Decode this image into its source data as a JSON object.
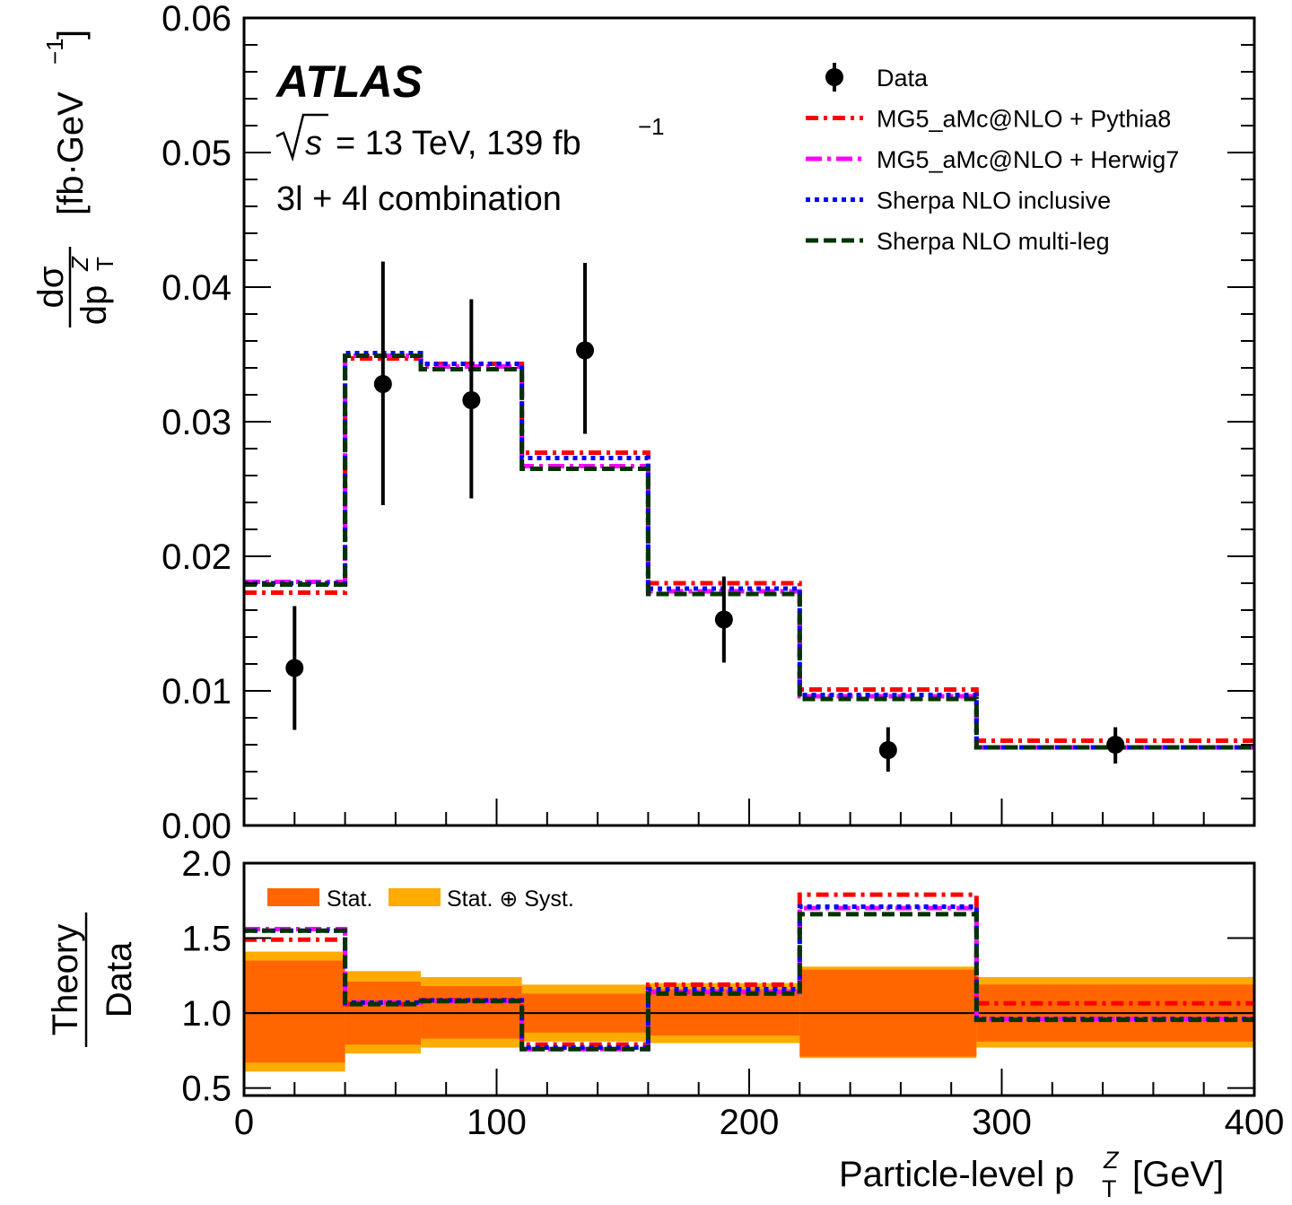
{
  "chart_data": [
    {
      "type": "line",
      "panel": "main",
      "title": "",
      "experiment_label": "ATLAS",
      "info_lines": [
        "√s = 13 TeV, 139 fb⁻¹",
        "3l + 4l combination"
      ],
      "energy_label": "= 13 TeV, 139 fb",
      "lumi_exp": "−1",
      "sqrt_s": "s",
      "channel_label": "3l + 4l combination",
      "ylabel_num": "dσ",
      "ylabel_den": "dp",
      "ylabel_den_sup": "Z",
      "ylabel_den_sub": "T",
      "ylabel_unit": "[fb·GeV",
      "ylabel_unit_exp": "−1",
      "ylabel_unit_close": "]",
      "ylim": [
        0.0,
        0.06
      ],
      "yticks": [
        0.0,
        0.01,
        0.02,
        0.03,
        0.04,
        0.05,
        0.06
      ],
      "ytick_labels": [
        "0.00",
        "0.01",
        "0.02",
        "0.03",
        "0.04",
        "0.05",
        "0.06"
      ],
      "xlim": [
        0,
        400
      ],
      "bin_edges": [
        0,
        40,
        70,
        110,
        160,
        220,
        290,
        400
      ],
      "data": {
        "name": "Data",
        "x": [
          20,
          55,
          90,
          135,
          190,
          255,
          345
        ],
        "y": [
          0.0117,
          0.0328,
          0.0316,
          0.0353,
          0.0153,
          0.0056,
          0.006
        ],
        "err_up": [
          0.0163,
          0.0419,
          0.0391,
          0.0418,
          0.0185,
          0.0073,
          0.0073
        ],
        "err_down": [
          0.0071,
          0.0238,
          0.0243,
          0.0291,
          0.0121,
          0.004,
          0.0046
        ]
      },
      "series": [
        {
          "name": "MG5_aMc@NLO + Pythia8",
          "color": "#ff0000",
          "style": "dash-dot",
          "values": [
            0.0173,
            0.0347,
            0.0343,
            0.0277,
            0.018,
            0.0101,
            0.0063
          ]
        },
        {
          "name": "MG5_aMc@NLO + Herwig7",
          "color": "#ff00ff",
          "style": "long-dash-dot",
          "values": [
            0.0181,
            0.0349,
            0.0341,
            0.0267,
            0.0174,
            0.0096,
            0.0058
          ]
        },
        {
          "name": "Sherpa NLO inclusive",
          "color": "#0000ff",
          "style": "dotted",
          "values": [
            0.018,
            0.0351,
            0.0343,
            0.0273,
            0.0176,
            0.0097,
            0.0058
          ]
        },
        {
          "name": "Sherpa NLO multi-leg",
          "color": "#003300",
          "style": "dashed",
          "values": [
            0.0179,
            0.0349,
            0.0339,
            0.0265,
            0.0172,
            0.0094,
            0.0058
          ]
        }
      ],
      "legend": {
        "placement": "top-right",
        "entries": [
          "Data",
          "MG5_aMc@NLO + Pythia8",
          "MG5_aMc@NLO + Herwig7",
          "Sherpa NLO inclusive",
          "Sherpa NLO multi-leg"
        ]
      }
    },
    {
      "type": "line",
      "panel": "ratio",
      "ylabel_num": "Theory",
      "ylabel_den": "Data",
      "xlabel": "Particle-level p",
      "xlabel_sup": "Z",
      "xlabel_sub": "T",
      "xlabel_unit": "[GeV]",
      "ylim": [
        0.45,
        2.0
      ],
      "yticks": [
        0.5,
        1.0,
        1.5,
        2.0
      ],
      "ytick_labels": [
        "0.5",
        "1.0",
        "1.5",
        "2.0"
      ],
      "xlim": [
        0,
        400
      ],
      "xticks": [
        0,
        100,
        200,
        300,
        400
      ],
      "xtick_labels": [
        "0",
        "100",
        "200",
        "300",
        "400"
      ],
      "bin_edges": [
        0,
        40,
        70,
        110,
        160,
        220,
        290,
        400
      ],
      "reference_line": 1.0,
      "bands": [
        {
          "name": "Stat. ⊕ Syst.",
          "color": "#ffab00",
          "up": [
            1.41,
            1.28,
            1.24,
            1.19,
            1.2,
            1.31,
            1.24
          ],
          "down": [
            0.61,
            0.73,
            0.77,
            0.81,
            0.8,
            0.7,
            0.77
          ]
        },
        {
          "name": "Stat.",
          "color": "#ff6600",
          "up": [
            1.35,
            1.21,
            1.18,
            1.13,
            1.16,
            1.29,
            1.19
          ],
          "down": [
            0.67,
            0.79,
            0.83,
            0.87,
            0.85,
            0.71,
            0.81
          ]
        }
      ],
      "band_legend": {
        "placement": "top-left",
        "entries": [
          "Stat.",
          "Stat. ⊕ Syst."
        ]
      },
      "series": [
        {
          "name": "MG5_aMc@NLO + Pythia8",
          "color": "#ff0000",
          "style": "dash-dot",
          "values": [
            1.49,
            1.06,
            1.085,
            0.79,
            1.19,
            1.79,
            1.065
          ]
        },
        {
          "name": "MG5_aMc@NLO + Herwig7",
          "color": "#ff00ff",
          "style": "long-dash-dot",
          "values": [
            1.56,
            1.07,
            1.08,
            0.76,
            1.14,
            1.7,
            0.96
          ]
        },
        {
          "name": "Sherpa NLO inclusive",
          "color": "#0000ff",
          "style": "dotted",
          "values": [
            1.55,
            1.07,
            1.085,
            0.77,
            1.16,
            1.71,
            0.96
          ]
        },
        {
          "name": "Sherpa NLO multi-leg",
          "color": "#003300",
          "style": "dashed",
          "values": [
            1.55,
            1.06,
            1.08,
            0.76,
            1.13,
            1.66,
            0.955
          ]
        }
      ]
    }
  ]
}
